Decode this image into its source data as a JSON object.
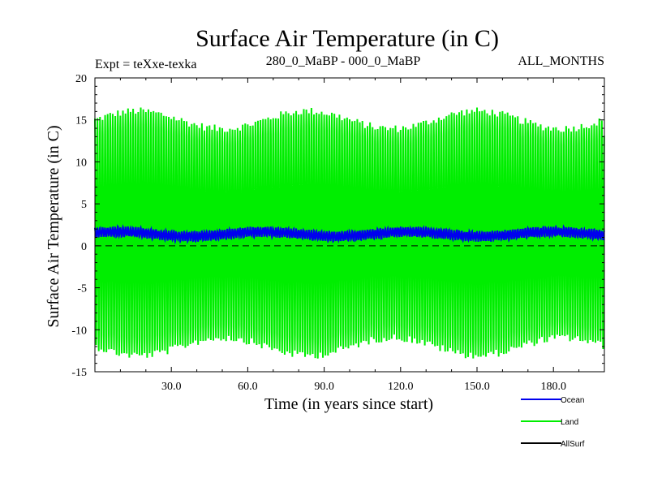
{
  "chart_data": {
    "type": "line",
    "title": "Surface Air Temperature (in C)",
    "subtitle_left": "Expt = teXxe-texka",
    "subtitle_center": "280_0_MaBP - 000_0_MaBP",
    "subtitle_right": "ALL_MONTHS",
    "xlabel": "Time (in years since start)",
    "ylabel": "Surface Air Temperature (in C)",
    "xlim": [
      0,
      200
    ],
    "ylim": [
      -15,
      20
    ],
    "xticks": [
      30,
      60,
      90,
      120,
      150,
      180
    ],
    "xtick_labels": [
      "30.0",
      "60.0",
      "90.0",
      "120.0",
      "150.0",
      "180.0"
    ],
    "yticks": [
      -15,
      -10,
      -5,
      0,
      5,
      10,
      15,
      20
    ],
    "ytick_labels": [
      "-15",
      "-10",
      "-5",
      "0",
      "5",
      "10",
      "15",
      "20"
    ],
    "zero_line": {
      "value": 0,
      "style": "dashed"
    },
    "legend_position": "bottom-right",
    "series": [
      {
        "name": "Land",
        "color": "#00ee00",
        "description": "monthly values oscillating seasonally",
        "annual_max_range": [
          13.5,
          16.5
        ],
        "annual_min_range": [
          -13.5,
          -10.5
        ],
        "mean": 1.5
      },
      {
        "name": "Ocean",
        "color": "#0000ee",
        "description": "monthly values with small seasonal swing",
        "mean": 1.4,
        "amplitude": 0.5
      },
      {
        "name": "AllSurf",
        "color": "#000000",
        "values": []
      }
    ],
    "legend": [
      {
        "name": "Ocean",
        "color": "#0000ee"
      },
      {
        "name": "Land",
        "color": "#00ee00"
      },
      {
        "name": "AllSurf",
        "color": "#000000"
      }
    ]
  }
}
